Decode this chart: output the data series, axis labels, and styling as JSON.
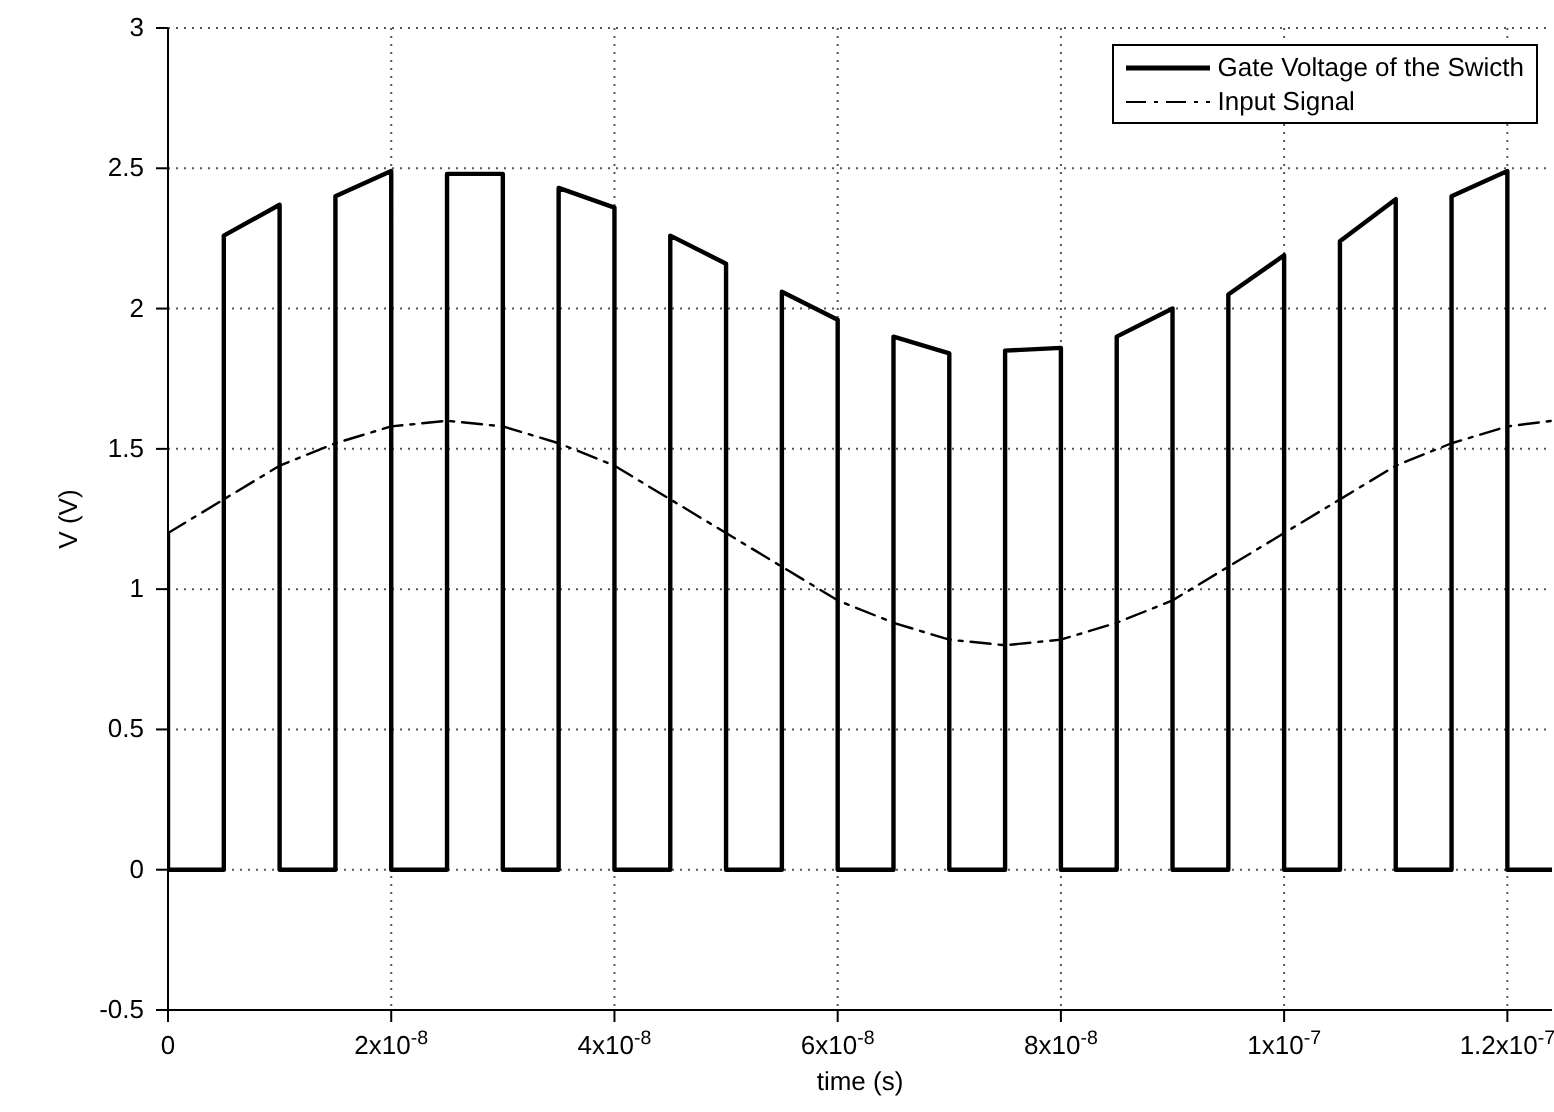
{
  "chart_data": {
    "type": "line",
    "xlabel": "time (s)",
    "ylabel": "V (V)",
    "xlim": [
      0,
      1.24e-07
    ],
    "ylim": [
      -0.5,
      3
    ],
    "xticks": [
      0,
      {
        "value": 2e-08,
        "label": "2x10$^{-8}$"
      },
      {
        "value": 4e-08,
        "label": "4x10$^{-8}$"
      },
      {
        "value": 6e-08,
        "label": "6x10$^{-8}$"
      },
      {
        "value": 8e-08,
        "label": "8x10$^{-8}$"
      },
      {
        "value": 1e-07,
        "label": "1x10$^{-7}$"
      },
      {
        "value": 1.2e-07,
        "label": "1.2x10$^{-7}$"
      }
    ],
    "yticks": [
      -0.5,
      0,
      0.5,
      1,
      1.5,
      2,
      2.5,
      3
    ],
    "grid": true,
    "legend": "top right",
    "marker": "none",
    "series": [
      {
        "name": "Gate Voltage of the Swicth",
        "color": "#000000",
        "line_style": "solid",
        "x": [
          0,
          0,
          5e-09,
          5e-09,
          1e-08,
          1e-08,
          1.5e-08,
          1.5e-08,
          2e-08,
          2e-08,
          2.5e-08,
          2.5e-08,
          3e-08,
          3e-08,
          3.5e-08,
          3.5e-08,
          4e-08,
          4e-08,
          4.5e-08,
          4.5e-08,
          5e-08,
          5e-08,
          5.5e-08,
          5.5e-08,
          6e-08,
          6e-08,
          6.5e-08,
          6.5e-08,
          7e-08,
          7e-08,
          7.5e-08,
          7.5e-08,
          8e-08,
          8e-08,
          8.5e-08,
          8.5e-08,
          9e-08,
          9e-08,
          9.5e-08,
          9.5e-08,
          1e-07,
          1e-07,
          1.05e-07,
          1.05e-07,
          1.1e-07,
          1.1e-07,
          1.15e-07,
          1.15e-07,
          1.2e-07,
          1.2e-07,
          1.24e-07
        ],
        "values": [
          1.2,
          0,
          0,
          2.26,
          2.37,
          0,
          0,
          2.4,
          2.49,
          0,
          0,
          2.48,
          2.48,
          0,
          0,
          2.43,
          2.36,
          0,
          0,
          2.26,
          2.16,
          0,
          0,
          2.06,
          1.96,
          0,
          0,
          1.9,
          1.84,
          0,
          0,
          1.85,
          1.86,
          0,
          0,
          1.9,
          2.0,
          0,
          0,
          2.05,
          2.19,
          0,
          0,
          2.24,
          2.39,
          0,
          0,
          2.4,
          2.49,
          0,
          0
        ]
      },
      {
        "name": "Input Signal",
        "color": "#000000",
        "line_style": "dashdot",
        "x": [
          0,
          5e-09,
          1e-08,
          1.5e-08,
          2e-08,
          2.5e-08,
          3e-08,
          3.5e-08,
          4e-08,
          4.5e-08,
          5e-08,
          5.5e-08,
          6e-08,
          6.5e-08,
          7e-08,
          7.5e-08,
          8e-08,
          8.5e-08,
          9e-08,
          9.5e-08,
          1e-07,
          1.05e-07,
          1.1e-07,
          1.15e-07,
          1.2e-07,
          1.24e-07
        ],
        "values": [
          1.2,
          1.32,
          1.44,
          1.52,
          1.58,
          1.6,
          1.58,
          1.52,
          1.44,
          1.32,
          1.2,
          1.08,
          0.96,
          0.88,
          0.82,
          0.8,
          0.82,
          0.88,
          0.96,
          1.08,
          1.2,
          1.32,
          1.44,
          1.52,
          1.58,
          1.6
        ]
      }
    ]
  }
}
